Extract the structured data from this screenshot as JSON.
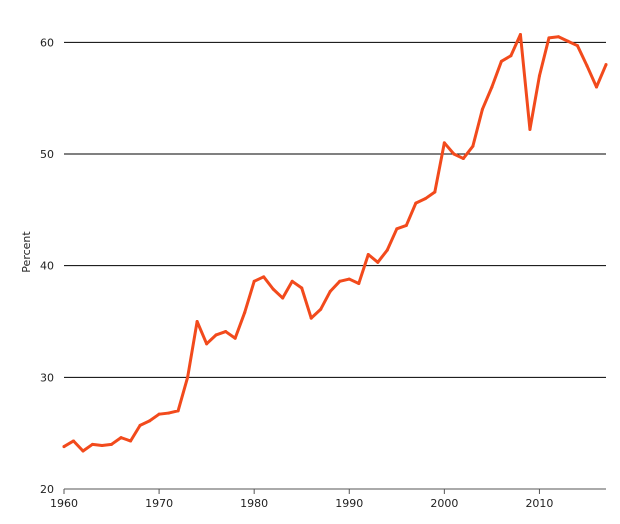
{
  "chart_data": {
    "type": "line",
    "title": "",
    "xlabel": "",
    "ylabel": "Percent",
    "xlim": [
      1960,
      2017
    ],
    "ylim": [
      20,
      62
    ],
    "x_ticks": [
      1960,
      1970,
      1980,
      1990,
      2000,
      2010
    ],
    "y_ticks": [
      20,
      30,
      40,
      50,
      60
    ],
    "grid": "horizontal",
    "line_color": "#f24a1c",
    "series": [
      {
        "x": [
          1960,
          1961,
          1962,
          1963,
          1964,
          1965,
          1966,
          1967,
          1968,
          1969,
          1970,
          1971,
          1972,
          1973,
          1974,
          1975,
          1976,
          1977,
          1978,
          1979,
          1980,
          1981,
          1982,
          1983,
          1984,
          1985,
          1986,
          1987,
          1988,
          1989,
          1990,
          1991,
          1992,
          1993,
          1994,
          1995,
          1996,
          1997,
          1998,
          1999,
          2000,
          2001,
          2002,
          2003,
          2004,
          2005,
          2006,
          2007,
          2008,
          2009,
          2010,
          2011,
          2012,
          2013,
          2014,
          2015,
          2016,
          2017
        ],
        "values": [
          23.8,
          24.3,
          23.4,
          24.0,
          23.9,
          24.0,
          24.6,
          24.3,
          25.7,
          26.1,
          26.7,
          26.8,
          27.0,
          30.0,
          35.0,
          33.0,
          33.8,
          34.1,
          33.5,
          35.8,
          38.6,
          39.0,
          37.9,
          37.1,
          38.6,
          38.0,
          35.3,
          36.1,
          37.7,
          38.6,
          38.8,
          38.4,
          41.0,
          40.3,
          41.4,
          43.3,
          43.6,
          45.6,
          46.0,
          46.6,
          51.0,
          50.0,
          49.6,
          50.7,
          54.0,
          56.0,
          58.3,
          58.8,
          60.7,
          52.2,
          57.0,
          60.4,
          60.5,
          60.1,
          59.7,
          57.9,
          56.0,
          58.0
        ]
      }
    ]
  }
}
